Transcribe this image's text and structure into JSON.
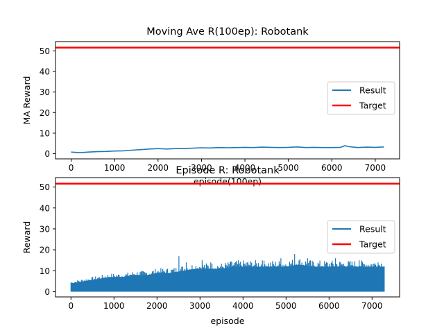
{
  "chart_data": [
    {
      "type": "line",
      "title": "Moving Ave R(100ep): Robotank",
      "xlabel": "episode(100ep)",
      "ylabel": "MA Reward",
      "xlim": [
        -360,
        7560
      ],
      "ylim": [
        -2.5,
        54.5
      ],
      "xticks": [
        0,
        1000,
        2000,
        3000,
        4000,
        5000,
        6000,
        7000
      ],
      "yticks": [
        0,
        10,
        20,
        30,
        40,
        50
      ],
      "xtick_labels": [
        "0",
        "1000",
        "2000",
        "3000",
        "4000",
        "5000",
        "6000",
        "7000"
      ],
      "ytick_labels": [
        "0",
        "10",
        "20",
        "30",
        "40",
        "50"
      ],
      "legend_position": "center-right",
      "series": [
        {
          "name": "Result",
          "kind": "line",
          "color": "#1f77b4",
          "x": [
            0,
            200,
            400,
            600,
            800,
            1000,
            1200,
            1400,
            1600,
            1800,
            2000,
            2200,
            2400,
            2600,
            2800,
            3000,
            3200,
            3400,
            3600,
            3800,
            4000,
            4200,
            4400,
            4600,
            4800,
            5000,
            5200,
            5400,
            5600,
            5800,
            6000,
            6200,
            6300,
            6400,
            6600,
            6800,
            7000,
            7200
          ],
          "values": [
            0.8,
            0.5,
            0.8,
            1.0,
            1.1,
            1.3,
            1.4,
            1.7,
            2.0,
            2.3,
            2.5,
            2.3,
            2.5,
            2.6,
            2.7,
            2.9,
            2.8,
            3.0,
            2.9,
            3.0,
            3.1,
            3.0,
            3.2,
            3.1,
            3.0,
            3.1,
            3.3,
            3.0,
            3.1,
            3.0,
            3.0,
            3.1,
            3.9,
            3.4,
            3.0,
            3.2,
            3.1,
            3.3
          ]
        },
        {
          "name": "Target",
          "kind": "hline",
          "color": "#ff0000",
          "values": [
            51.6
          ]
        }
      ]
    },
    {
      "type": "area",
      "title": "Episode R: Robotank",
      "xlabel": "episode",
      "ylabel": "Reward",
      "xlim": [
        -360,
        7640
      ],
      "ylim": [
        -2.5,
        54.5
      ],
      "xticks": [
        0,
        1000,
        2000,
        3000,
        4000,
        5000,
        6000,
        7000
      ],
      "yticks": [
        0,
        10,
        20,
        30,
        40,
        50
      ],
      "xtick_labels": [
        "0",
        "1000",
        "2000",
        "3000",
        "4000",
        "5000",
        "6000",
        "7000"
      ],
      "ytick_labels": [
        "0",
        "10",
        "20",
        "30",
        "40",
        "50"
      ],
      "legend_position": "center-right",
      "series": [
        {
          "name": "Result",
          "kind": "band",
          "color": "#1f77b4",
          "x": [
            0,
            300,
            600,
            900,
            1200,
            1500,
            1800,
            2000,
            2300,
            2600,
            2900,
            3200,
            3500,
            3800,
            4100,
            4400,
            4700,
            5000,
            5300,
            5600,
            5900,
            6200,
            6500,
            6800,
            7100,
            7290
          ],
          "high": [
            4,
            5,
            6,
            7,
            7,
            8,
            8,
            9,
            9,
            10,
            11,
            11,
            11,
            12,
            12,
            12,
            12,
            12,
            13,
            12,
            12,
            12,
            12,
            12,
            12,
            12
          ],
          "low": [
            0,
            0,
            0,
            0,
            0,
            0,
            0,
            0,
            0,
            0,
            0,
            0,
            0,
            0,
            0,
            0,
            0,
            0,
            0,
            0,
            0,
            0,
            0,
            0,
            0,
            0
          ],
          "peaks": [
            {
              "x": 2510,
              "y": 17
            },
            {
              "x": 2680,
              "y": 14
            },
            {
              "x": 3050,
              "y": 15
            },
            {
              "x": 3250,
              "y": 14
            },
            {
              "x": 3700,
              "y": 14
            },
            {
              "x": 4450,
              "y": 15
            },
            {
              "x": 4880,
              "y": 16
            },
            {
              "x": 5200,
              "y": 18
            },
            {
              "x": 5500,
              "y": 16
            },
            {
              "x": 6150,
              "y": 16
            },
            {
              "x": 6700,
              "y": 15
            },
            {
              "x": 7140,
              "y": 14
            }
          ]
        },
        {
          "name": "Target",
          "kind": "hline",
          "color": "#ff0000",
          "values": [
            51.6
          ]
        }
      ]
    }
  ]
}
